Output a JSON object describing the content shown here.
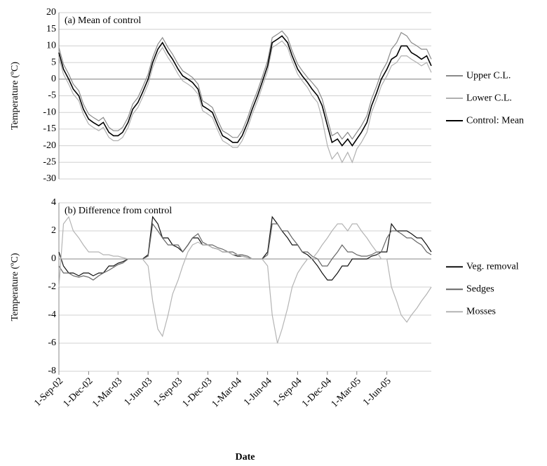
{
  "chart_data": [
    {
      "type": "line",
      "title": "(a) Mean of control",
      "y_label": "Temperature (ºC)",
      "legend": "right",
      "grid": true,
      "x": [
        "2002-09-01",
        "2002-09-15",
        "2002-10-01",
        "2002-10-15",
        "2002-11-01",
        "2002-11-15",
        "2002-12-01",
        "2002-12-15",
        "2003-01-01",
        "2003-01-15",
        "2003-02-01",
        "2003-02-15",
        "2003-03-01",
        "2003-03-15",
        "2003-04-01",
        "2003-04-15",
        "2003-05-01",
        "2003-05-15",
        "2003-06-01",
        "2003-06-15",
        "2003-07-01",
        "2003-07-15",
        "2003-08-01",
        "2003-08-15",
        "2003-09-01",
        "2003-09-15",
        "2003-10-01",
        "2003-10-15",
        "2003-11-01",
        "2003-11-15",
        "2003-12-01",
        "2003-12-15",
        "2004-01-01",
        "2004-01-15",
        "2004-02-01",
        "2004-02-15",
        "2004-03-01",
        "2004-03-15",
        "2004-04-01",
        "2004-04-15",
        "2004-05-01",
        "2004-05-15",
        "2004-06-01",
        "2004-06-15",
        "2004-07-01",
        "2004-07-15",
        "2004-08-01",
        "2004-08-15",
        "2004-09-01",
        "2004-09-15",
        "2004-10-01",
        "2004-10-15",
        "2004-11-01",
        "2004-11-15",
        "2004-12-01",
        "2004-12-15",
        "2005-01-01",
        "2005-01-15",
        "2005-02-01",
        "2005-02-15",
        "2005-03-01",
        "2005-03-15",
        "2005-04-01",
        "2005-04-15",
        "2005-05-01",
        "2005-05-15",
        "2005-06-01",
        "2005-06-15",
        "2005-07-01",
        "2005-07-15",
        "2005-08-01",
        "2005-08-15",
        "2005-09-01",
        "2005-09-15",
        "2005-10-01",
        "2005-10-15"
      ],
      "xlim": [
        "2002-09-01",
        "2005-10-15"
      ],
      "ylim": [
        -30,
        20
      ],
      "yticks": [
        -30,
        -25,
        -20,
        -15,
        -10,
        -5,
        0,
        5,
        10,
        15,
        20
      ],
      "series": [
        {
          "name": "Upper C.L.",
          "color": "#8a8a8a",
          "values": [
            9.5,
            4.5,
            1.5,
            -1.5,
            -3.5,
            -7.5,
            -10.5,
            -11.5,
            -12.5,
            -11.5,
            -14.5,
            -15.5,
            -15.5,
            -14.5,
            -11.5,
            -7.5,
            -5.5,
            -2.5,
            1.5,
            6.5,
            10.5,
            12.5,
            9.5,
            7.5,
            4.5,
            2.5,
            1.5,
            0.5,
            -1.5,
            -6.5,
            -7.5,
            -8.5,
            -12.5,
            -15.5,
            -16.5,
            -17.5,
            -17.5,
            -15.5,
            -11.5,
            -7.5,
            -3.5,
            0.5,
            5.5,
            12.5,
            13.5,
            14.5,
            12.5,
            8.5,
            4.5,
            2.5,
            0.5,
            -1,
            -3,
            -6,
            -12,
            -17,
            -16,
            -18,
            -16,
            -18,
            -16,
            -14,
            -11,
            -6,
            -2,
            2,
            5,
            9,
            11,
            14,
            13,
            11,
            10,
            9,
            9,
            6
          ]
        },
        {
          "name": "Lower C.L.",
          "color": "#b0b0b0",
          "values": [
            6.5,
            1.5,
            -1.5,
            -4.5,
            -6.5,
            -10.5,
            -13.5,
            -14.5,
            -15.5,
            -14.5,
            -17.5,
            -18.5,
            -18.5,
            -17.5,
            -14.5,
            -10.5,
            -8.5,
            -5.5,
            -1.5,
            3.5,
            7.5,
            9.5,
            6.5,
            4.5,
            1.5,
            -0.5,
            -1.5,
            -2.5,
            -4.5,
            -9.5,
            -10.5,
            -11.5,
            -15.5,
            -18.5,
            -19.5,
            -20.5,
            -20.5,
            -18.5,
            -14.5,
            -10.5,
            -6.5,
            -2.5,
            2.5,
            9.5,
            10.5,
            11.5,
            9.5,
            5.5,
            1.5,
            -0.5,
            -2.5,
            -5,
            -7,
            -12,
            -20,
            -24,
            -22,
            -25,
            -22,
            -25,
            -21,
            -19,
            -16,
            -10,
            -6,
            -2,
            1,
            4,
            5,
            7,
            7,
            6,
            5,
            4,
            5,
            2
          ]
        },
        {
          "name": "Control: Mean",
          "color": "#000000",
          "values": [
            8,
            3,
            0,
            -3,
            -5,
            -9,
            -12,
            -13,
            -14,
            -13,
            -16,
            -17,
            -17,
            -16,
            -13,
            -9,
            -7,
            -4,
            0,
            5,
            9,
            11,
            8,
            6,
            3,
            1,
            0,
            -1,
            -3,
            -8,
            -9,
            -10,
            -14,
            -17,
            -18,
            -19,
            -19,
            -17,
            -13,
            -9,
            -5,
            -1,
            4,
            11,
            12,
            13,
            11,
            7,
            3,
            1,
            -1,
            -3,
            -5,
            -8,
            -14,
            -19,
            -18,
            -20,
            -18,
            -20,
            -18,
            -16,
            -13,
            -8,
            -4,
            0,
            3,
            6,
            7,
            10,
            10,
            8,
            7,
            6,
            7,
            4
          ]
        }
      ]
    },
    {
      "type": "line",
      "title": "(b) Difference from control",
      "y_label": "Temperature (ºC)",
      "x_label": "Date",
      "legend": "right",
      "grid": true,
      "x": [
        "2002-09-01",
        "2002-09-15",
        "2002-10-01",
        "2002-10-15",
        "2002-11-01",
        "2002-11-15",
        "2002-12-01",
        "2002-12-15",
        "2003-01-01",
        "2003-01-15",
        "2003-02-01",
        "2003-02-15",
        "2003-03-01",
        "2003-03-15",
        "2003-04-01",
        "2003-04-15",
        "2003-05-01",
        "2003-05-15",
        "2003-06-01",
        "2003-06-15",
        "2003-07-01",
        "2003-07-15",
        "2003-08-01",
        "2003-08-15",
        "2003-09-01",
        "2003-09-15",
        "2003-10-01",
        "2003-10-15",
        "2003-11-01",
        "2003-11-15",
        "2003-12-01",
        "2003-12-15",
        "2004-01-01",
        "2004-01-15",
        "2004-02-01",
        "2004-02-15",
        "2004-03-01",
        "2004-03-15",
        "2004-04-01",
        "2004-04-15",
        "2004-05-01",
        "2004-05-15",
        "2004-06-01",
        "2004-06-15",
        "2004-07-01",
        "2004-07-15",
        "2004-08-01",
        "2004-08-15",
        "2004-09-01",
        "2004-09-15",
        "2004-10-01",
        "2004-10-15",
        "2004-11-01",
        "2004-11-15",
        "2004-12-01",
        "2004-12-15",
        "2005-01-01",
        "2005-01-15",
        "2005-02-01",
        "2005-02-15",
        "2005-03-01",
        "2005-03-15",
        "2005-04-01",
        "2005-04-15",
        "2005-05-01",
        "2005-05-15",
        "2005-06-01",
        "2005-06-15",
        "2005-07-01",
        "2005-07-15",
        "2005-08-01",
        "2005-08-15",
        "2005-09-01",
        "2005-09-15",
        "2005-10-01",
        "2005-10-15"
      ],
      "xlim": [
        "2002-09-01",
        "2005-10-15"
      ],
      "xticks": [
        {
          "value": "2002-09-01",
          "label": "1-Sep-02"
        },
        {
          "value": "2002-12-01",
          "label": "1-Dec-02"
        },
        {
          "value": "2003-03-01",
          "label": "1-Mar-03"
        },
        {
          "value": "2003-06-01",
          "label": "1-Jun-03"
        },
        {
          "value": "2003-09-01",
          "label": "1-Sep-03"
        },
        {
          "value": "2003-12-01",
          "label": "1-Dec-03"
        },
        {
          "value": "2004-03-01",
          "label": "1-Mar-04"
        },
        {
          "value": "2004-06-01",
          "label": "1-Jun-04"
        },
        {
          "value": "2004-09-01",
          "label": "1-Sep-04"
        },
        {
          "value": "2004-12-01",
          "label": "1-Dec-04"
        },
        {
          "value": "2005-03-01",
          "label": "1-Mar-05"
        },
        {
          "value": "2005-06-01",
          "label": "1-Jun-05"
        }
      ],
      "ylim": [
        -8,
        4
      ],
      "yticks": [
        -8,
        -6,
        -4,
        -2,
        0,
        2,
        4
      ],
      "series": [
        {
          "name": "Veg. removal",
          "color": "#111111",
          "values": [
            0.5,
            -0.5,
            -1,
            -1,
            -1.2,
            -1,
            -1,
            -1.2,
            -1,
            -1,
            -0.5,
            -0.5,
            -0.3,
            -0.2,
            0,
            0,
            0,
            0,
            0.3,
            3,
            2.5,
            1.5,
            1.5,
            1,
            0.8,
            0.5,
            1,
            1.5,
            1.5,
            1,
            1,
            0.8,
            0.7,
            0.5,
            0.5,
            0.3,
            0.2,
            0.2,
            0.1,
            0,
            0,
            0,
            0.5,
            3,
            2.5,
            2,
            1.5,
            1,
            1,
            0.5,
            0.3,
            0,
            -0.5,
            -1,
            -1.5,
            -1.5,
            -1,
            -0.5,
            -0.5,
            0,
            0,
            0,
            0,
            0.2,
            0.3,
            0.5,
            0.5,
            2.5,
            2,
            2,
            2,
            1.8,
            1.5,
            1.5,
            1,
            0.5
          ]
        },
        {
          "name": "Sedges",
          "color": "#666666",
          "values": [
            -0.5,
            -1,
            -1,
            -1.2,
            -1.3,
            -1.2,
            -1.3,
            -1.5,
            -1.2,
            -1,
            -0.8,
            -0.6,
            -0.4,
            -0.3,
            0,
            0,
            0,
            0,
            0.2,
            2.5,
            2,
            1.5,
            1,
            1,
            1,
            0.5,
            1,
            1.5,
            1.8,
            1.2,
            1,
            1,
            0.8,
            0.7,
            0.5,
            0.5,
            0.3,
            0.3,
            0.2,
            0,
            0,
            0,
            0.3,
            2.5,
            2.5,
            2,
            2,
            1.5,
            1,
            0.5,
            0.5,
            0.2,
            0,
            -0.5,
            -0.5,
            0,
            0.5,
            1,
            0.5,
            0.5,
            0.3,
            0.2,
            0.2,
            0.3,
            0.5,
            0.5,
            1.5,
            2,
            2,
            1.8,
            1.5,
            1.5,
            1.2,
            1,
            0.5,
            0.3
          ]
        },
        {
          "name": "Mosses",
          "color": "#b4b4b4",
          "values": [
            -2,
            2.5,
            3,
            2,
            1.5,
            1,
            0.5,
            0.5,
            0.5,
            0.3,
            0.3,
            0.2,
            0.2,
            0.1,
            0,
            0,
            0,
            0,
            -0.5,
            -3,
            -5,
            -5.5,
            -4,
            -2.5,
            -1.5,
            -0.5,
            0.5,
            1,
            1.2,
            1,
            1,
            0.8,
            0.7,
            0.5,
            0.5,
            0.3,
            0.3,
            0.2,
            0.1,
            0,
            0,
            0,
            -0.5,
            -4,
            -6,
            -5,
            -3.5,
            -2,
            -1,
            -0.5,
            0,
            0,
            0.5,
            1,
            1.5,
            2,
            2.5,
            2.5,
            2,
            2.5,
            2.5,
            2,
            1.5,
            1,
            0.5,
            0,
            0,
            -2,
            -3,
            -4,
            -4.5,
            -4,
            -3.5,
            -3,
            -2.5,
            -2
          ]
        }
      ]
    }
  ]
}
